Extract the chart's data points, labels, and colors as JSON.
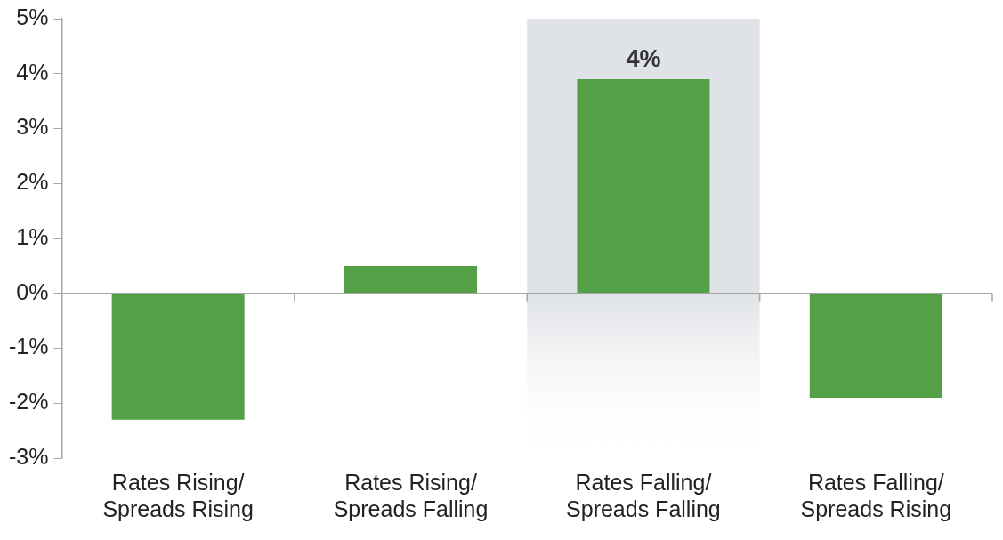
{
  "chart_data": {
    "type": "bar",
    "categories": [
      "Rates Rising/\nSpreads Rising",
      "Rates Rising/\nSpreads Falling",
      "Rates Falling/\nSpreads Falling",
      "Rates Falling/\nSpreads Rising"
    ],
    "values": [
      -2.3,
      0.5,
      3.9,
      -1.9
    ],
    "color": "#53a047",
    "value_labels": [
      null,
      null,
      "4%",
      null
    ],
    "ylim": [
      -3,
      5
    ],
    "yticks": [
      {
        "value": -3,
        "label": "-3%"
      },
      {
        "value": -2,
        "label": "-2%"
      },
      {
        "value": -1,
        "label": "-1%"
      },
      {
        "value": 0,
        "label": "0%"
      },
      {
        "value": 1,
        "label": "1%"
      },
      {
        "value": 2,
        "label": "2%"
      },
      {
        "value": 3,
        "label": "3%"
      },
      {
        "value": 4,
        "label": "4%"
      },
      {
        "value": 5,
        "label": "5%"
      }
    ],
    "bands": [
      {
        "axis": "x",
        "from": "Rates Falling/\nSpreads Falling",
        "to": "Rates Falling/\nSpreads Falling",
        "color": "#dfe2e6"
      }
    ],
    "legend": false
  }
}
